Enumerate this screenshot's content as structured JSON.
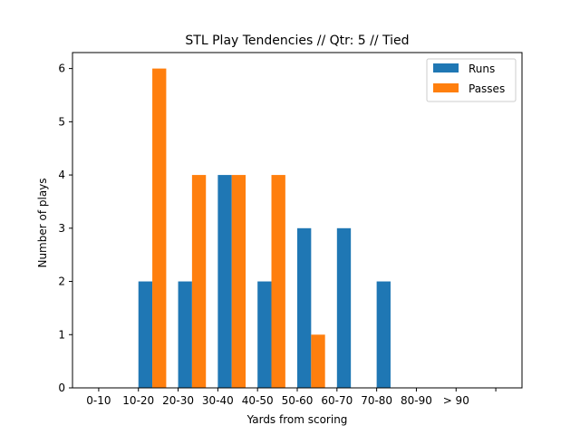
{
  "chart_data": {
    "type": "bar",
    "title": "STL Play Tendencies // Qtr: 5 // Tied",
    "xlabel": "Yards from scoring",
    "ylabel": "Number of plays",
    "categories": [
      "0-10",
      "10-20",
      "20-30",
      "30-40",
      "40-50",
      "50-60",
      "60-70",
      "70-80",
      "80-90",
      "> 90"
    ],
    "series": [
      {
        "name": "Runs",
        "color": "#1f77b4",
        "values": [
          0,
          2,
          2,
          4,
          2,
          3,
          3,
          2,
          0,
          0
        ]
      },
      {
        "name": "Passes",
        "color": "#ff7f0e",
        "values": [
          0,
          6,
          4,
          4,
          4,
          1,
          0,
          0,
          0,
          0
        ]
      }
    ],
    "ylim": [
      0,
      6.3
    ],
    "yticks": [
      0,
      1,
      2,
      3,
      4,
      5,
      6
    ],
    "grid": false,
    "legend_position": "top-right"
  }
}
